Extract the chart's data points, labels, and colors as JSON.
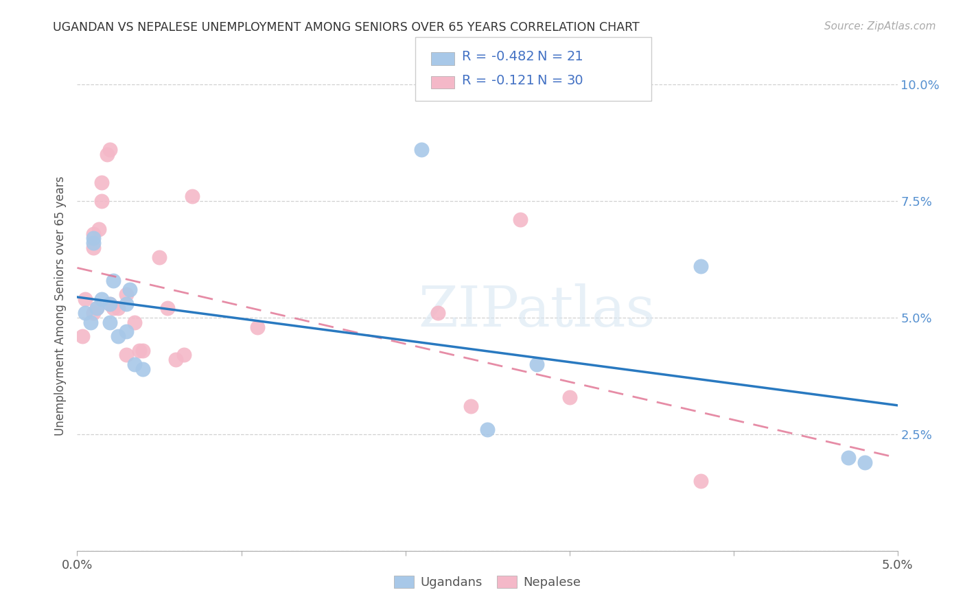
{
  "title": "UGANDAN VS NEPALESE UNEMPLOYMENT AMONG SENIORS OVER 65 YEARS CORRELATION CHART",
  "source": "Source: ZipAtlas.com",
  "ylabel_label": "Unemployment Among Seniors over 65 years",
  "xlim": [
    0.0,
    0.05
  ],
  "ylim": [
    0.0,
    0.105
  ],
  "r_ugandan": "-0.482",
  "n_ugandan": "21",
  "r_nepalese": "-0.121",
  "n_nepalese": "30",
  "ugandan_color": "#a8c8e8",
  "ugandan_line_color": "#2979c0",
  "nepalese_color": "#f4b8c8",
  "nepalese_line_color": "#e07090",
  "legend_text_color": "#4472c4",
  "watermark": "ZIPatlas",
  "ugandan_x": [
    0.0005,
    0.0008,
    0.001,
    0.001,
    0.0012,
    0.0015,
    0.002,
    0.002,
    0.0022,
    0.0025,
    0.003,
    0.003,
    0.0032,
    0.0035,
    0.004,
    0.021,
    0.025,
    0.028,
    0.038,
    0.047,
    0.048
  ],
  "ugandan_y": [
    0.051,
    0.049,
    0.067,
    0.066,
    0.052,
    0.054,
    0.053,
    0.049,
    0.058,
    0.046,
    0.047,
    0.053,
    0.056,
    0.04,
    0.039,
    0.086,
    0.026,
    0.04,
    0.061,
    0.02,
    0.019
  ],
  "nepalese_x": [
    0.0003,
    0.0005,
    0.001,
    0.001,
    0.001,
    0.0012,
    0.0013,
    0.0015,
    0.0015,
    0.0018,
    0.002,
    0.002,
    0.0022,
    0.0025,
    0.003,
    0.003,
    0.0035,
    0.0038,
    0.004,
    0.005,
    0.0055,
    0.006,
    0.0065,
    0.007,
    0.011,
    0.022,
    0.024,
    0.027,
    0.03,
    0.038
  ],
  "nepalese_y": [
    0.046,
    0.054,
    0.051,
    0.065,
    0.068,
    0.052,
    0.069,
    0.075,
    0.079,
    0.085,
    0.086,
    0.053,
    0.052,
    0.052,
    0.055,
    0.042,
    0.049,
    0.043,
    0.043,
    0.063,
    0.052,
    0.041,
    0.042,
    0.076,
    0.048,
    0.051,
    0.031,
    0.071,
    0.033,
    0.015
  ]
}
